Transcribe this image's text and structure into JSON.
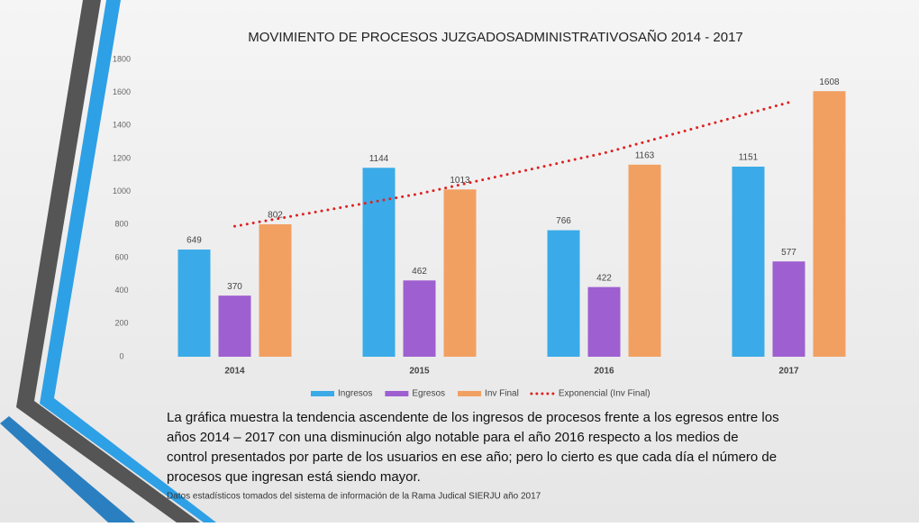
{
  "chart_data": {
    "type": "bar",
    "title": "MOVIMIENTO DE PROCESOS JUZGADOSADMINISTRATIVOSAÑO 2014 - 2017",
    "categories": [
      "2014",
      "2015",
      "2016",
      "2017"
    ],
    "series": [
      {
        "name": "Ingresos",
        "color": "#3aabe8",
        "values": [
          649,
          1144,
          766,
          1151
        ]
      },
      {
        "name": "Egresos",
        "color": "#9e5fd0",
        "values": [
          370,
          462,
          422,
          577
        ]
      },
      {
        "name": "Inv Final",
        "color": "#f2a062",
        "values": [
          802,
          1013,
          1163,
          1608
        ]
      },
      {
        "name": "Exponencial (Inv Final)",
        "color": "#e02020",
        "type": "line",
        "style": "dotted",
        "values": [
          790,
          987,
          1233,
          1540
        ]
      }
    ],
    "ylim": [
      0,
      1800
    ],
    "yticks": [
      0,
      200,
      400,
      600,
      800,
      1000,
      1200,
      1400,
      1600,
      1800
    ],
    "legend": "bottom",
    "caption": [
      "La gráfica muestra la tendencia ascendente de los ingresos de procesos frente a los egresos entre los",
      "años 2014 – 2017 con una disminución algo notable para el año 2016 respecto a los medios de",
      "control presentados por parte de los usuarios en ese año; pero lo cierto es que cada día el número de",
      "procesos que ingresan está siendo mayor."
    ],
    "source": "Datos estadísticos tomados del sistema de información de la Rama Judical SIERJU año 2017"
  }
}
